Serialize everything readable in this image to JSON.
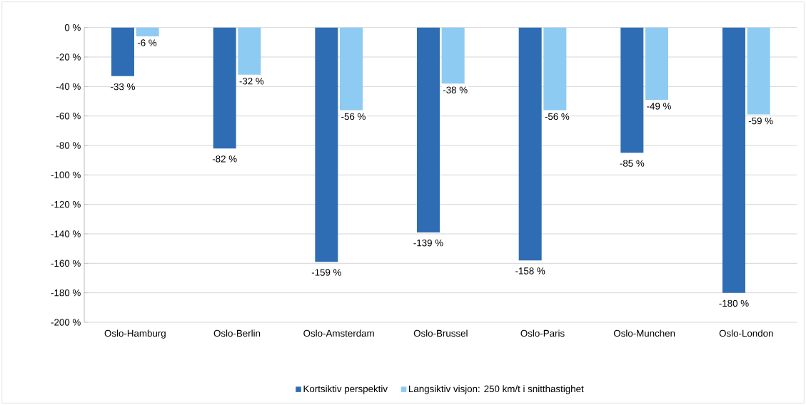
{
  "chart_data": {
    "type": "bar",
    "categories": [
      "Oslo-Hamburg",
      "Oslo-Berlin",
      "Oslo-Amsterdam",
      "Oslo-Brussel",
      "Oslo-Paris",
      "Oslo-Munchen",
      "Oslo-London"
    ],
    "series": [
      {
        "name": "Kortsiktiv perspektiv",
        "color": "#2e6db4",
        "values": [
          -33,
          -82,
          -159,
          -139,
          -158,
          -85,
          -180
        ],
        "value_labels": [
          "-33 %",
          "-82 %",
          "-159 %",
          "-139 %",
          "-158 %",
          "-85 %",
          "-180 %"
        ]
      },
      {
        "name": "Langsiktiv visjon: 250 km/t i snitthastighet",
        "color": "#8ecbf2",
        "values": [
          -6,
          -32,
          -56,
          -38,
          -56,
          -49,
          -59
        ],
        "value_labels": [
          "-6 %",
          "-32 %",
          "-56 %",
          "-38 %",
          "-56 %",
          "-49 %",
          "-59 %"
        ]
      }
    ],
    "ylim": [
      -200,
      0
    ],
    "yticks": [
      {
        "value": 0,
        "label": "0 %"
      },
      {
        "value": -20,
        "label": "-20 %"
      },
      {
        "value": -40,
        "label": "-40 %"
      },
      {
        "value": -60,
        "label": "-60 %"
      },
      {
        "value": -80,
        "label": "-80 %"
      },
      {
        "value": -100,
        "label": "-100 %"
      },
      {
        "value": -120,
        "label": "-120 %"
      },
      {
        "value": -140,
        "label": "-140 %"
      },
      {
        "value": -160,
        "label": "-160 %"
      },
      {
        "value": -180,
        "label": "-180 %"
      },
      {
        "value": -200,
        "label": "-200 %"
      }
    ],
    "grid": "y",
    "legend": "bottom"
  }
}
